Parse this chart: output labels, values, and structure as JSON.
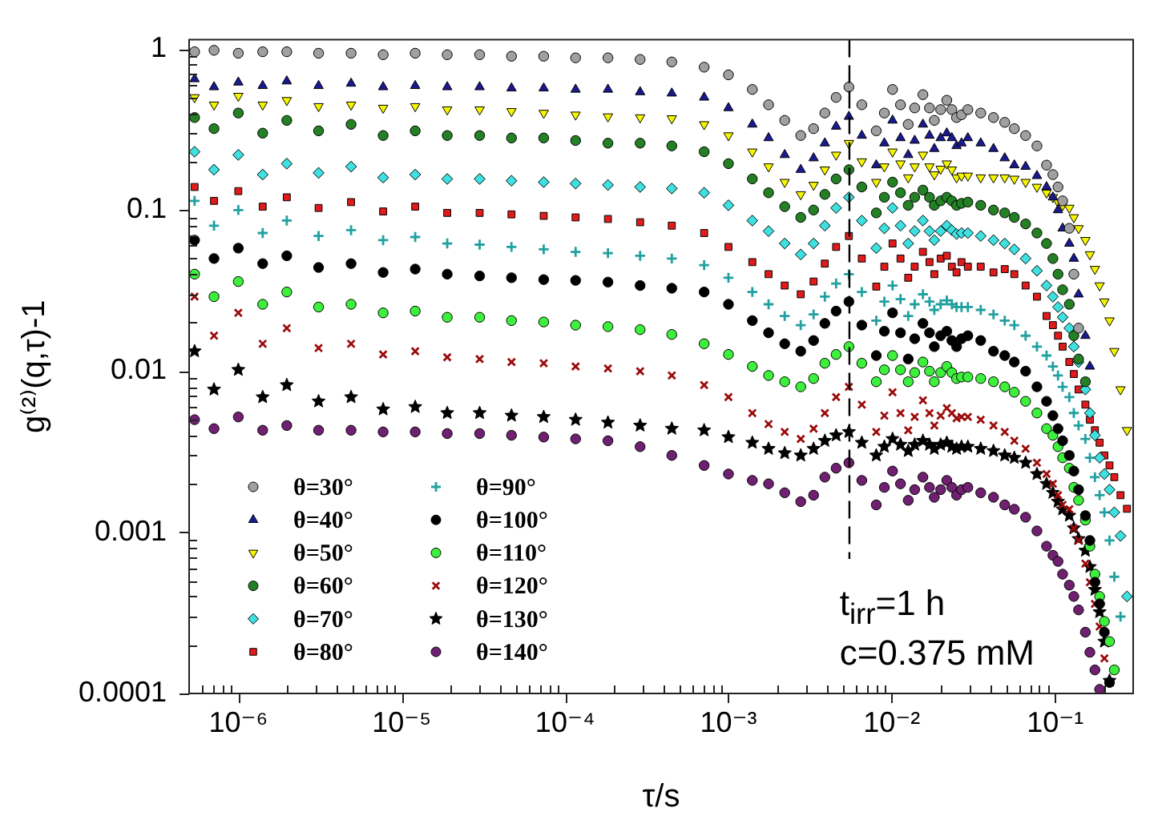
{
  "chart_data": {
    "type": "scatter",
    "xlabel": "τ/s",
    "ylabel": "g⁽²⁾(q,τ)-1",
    "log": "xy",
    "grid": false,
    "legend": "bottom left",
    "xlim": [
      5e-07,
      0.3
    ],
    "xticks": [
      {
        "value": 6e-07,
        "label": null
      },
      {
        "value": 7e-07,
        "label": null
      },
      {
        "value": 8e-07,
        "label": null
      },
      {
        "value": 9e-07,
        "label": null
      },
      {
        "value": 1e-06,
        "label": "10⁻⁶"
      },
      {
        "value": 2e-06,
        "label": null
      },
      {
        "value": 3e-06,
        "label": null
      },
      {
        "value": 4e-06,
        "label": null
      },
      {
        "value": 5e-06,
        "label": null
      },
      {
        "value": 6e-06,
        "label": null
      },
      {
        "value": 7e-06,
        "label": null
      },
      {
        "value": 8e-06,
        "label": null
      },
      {
        "value": 9e-06,
        "label": null
      },
      {
        "value": 1e-05,
        "label": "10⁻⁵"
      },
      {
        "value": 2e-05,
        "label": null
      },
      {
        "value": 3e-05,
        "label": null
      },
      {
        "value": 4e-05,
        "label": null
      },
      {
        "value": 5e-05,
        "label": null
      },
      {
        "value": 6e-05,
        "label": null
      },
      {
        "value": 7e-05,
        "label": null
      },
      {
        "value": 8e-05,
        "label": null
      },
      {
        "value": 9e-05,
        "label": null
      },
      {
        "value": 0.0001,
        "label": "10⁻⁴"
      },
      {
        "value": 0.0002,
        "label": null
      },
      {
        "value": 0.0003,
        "label": null
      },
      {
        "value": 0.0004,
        "label": null
      },
      {
        "value": 0.0005,
        "label": null
      },
      {
        "value": 0.0006,
        "label": null
      },
      {
        "value": 0.0007,
        "label": null
      },
      {
        "value": 0.0008,
        "label": null
      },
      {
        "value": 0.0009,
        "label": null
      },
      {
        "value": 0.001,
        "label": "10⁻³"
      },
      {
        "value": 0.002,
        "label": null
      },
      {
        "value": 0.003,
        "label": null
      },
      {
        "value": 0.004,
        "label": null
      },
      {
        "value": 0.005,
        "label": null
      },
      {
        "value": 0.006,
        "label": null
      },
      {
        "value": 0.007,
        "label": null
      },
      {
        "value": 0.008,
        "label": null
      },
      {
        "value": 0.009,
        "label": null
      },
      {
        "value": 0.01,
        "label": "10⁻²"
      },
      {
        "value": 0.02,
        "label": null
      },
      {
        "value": 0.03,
        "label": null
      },
      {
        "value": 0.04,
        "label": null
      },
      {
        "value": 0.05,
        "label": null
      },
      {
        "value": 0.06,
        "label": null
      },
      {
        "value": 0.07,
        "label": null
      },
      {
        "value": 0.08,
        "label": null
      },
      {
        "value": 0.09,
        "label": null
      },
      {
        "value": 0.1,
        "label": "10⁻¹"
      },
      {
        "value": 0.2,
        "label": null
      }
    ],
    "ylim": [
      0.0001,
      1.14
    ],
    "yticks": [
      0.0001,
      {
        "value": 0.0002,
        "label": null
      },
      {
        "value": 0.0003,
        "label": null
      },
      {
        "value": 0.0004,
        "label": null
      },
      {
        "value": 0.0005,
        "label": null
      },
      {
        "value": 0.0006,
        "label": null
      },
      {
        "value": 0.0007,
        "label": null
      },
      {
        "value": 0.0008,
        "label": null
      },
      {
        "value": 0.0009,
        "label": null
      },
      0.001,
      {
        "value": 0.002,
        "label": null
      },
      {
        "value": 0.003,
        "label": null
      },
      {
        "value": 0.004,
        "label": null
      },
      {
        "value": 0.005,
        "label": null
      },
      {
        "value": 0.006,
        "label": null
      },
      {
        "value": 0.007,
        "label": null
      },
      {
        "value": 0.008,
        "label": null
      },
      {
        "value": 0.009,
        "label": null
      },
      0.01,
      {
        "value": 0.02,
        "label": null
      },
      {
        "value": 0.03,
        "label": null
      },
      {
        "value": 0.04,
        "label": null
      },
      {
        "value": 0.05,
        "label": null
      },
      {
        "value": 0.06,
        "label": null
      },
      {
        "value": 0.07,
        "label": null
      },
      {
        "value": 0.08,
        "label": null
      },
      {
        "value": 0.09,
        "label": null
      },
      0.1,
      {
        "value": 0.2,
        "label": null
      },
      {
        "value": 0.3,
        "label": null
      },
      {
        "value": 0.4,
        "label": null
      },
      {
        "value": 0.5,
        "label": null
      },
      {
        "value": 0.6,
        "label": null
      },
      {
        "value": 0.7,
        "label": null
      },
      {
        "value": 0.8,
        "label": null
      },
      {
        "value": 0.9,
        "label": null
      },
      1
    ],
    "x": [
      5.4e-07,
      7.1e-07,
      1e-06,
      1.41e-06,
      1.98e-06,
      3.1e-06,
      4.9e-06,
      7.7e-06,
      1.21e-05,
      1.9e-05,
      3e-05,
      4.7e-05,
      7.4e-05,
      0.000116,
      0.000183,
      0.000288,
      0.00045,
      0.00071,
      0.001,
      0.0014,
      0.00176,
      0.00221,
      0.00277,
      0.00332,
      0.00389,
      0.00456,
      0.00546,
      0.00655,
      0.00803,
      0.009,
      0.0101,
      0.0113,
      0.0126,
      0.0138,
      0.0155,
      0.017,
      0.0182,
      0.0199,
      0.0217,
      0.0233,
      0.0249,
      0.0267,
      0.0292,
      0.035,
      0.0419,
      0.0491,
      0.0562,
      0.0659,
      0.0773,
      0.0885,
      0.0968,
      0.104,
      0.111,
      0.122,
      0.13,
      0.139,
      0.153,
      0.163,
      0.175,
      0.187,
      0.2,
      0.215,
      0.23,
      0.251,
      0.275
    ],
    "series": [
      {
        "name": "θ=30°",
        "color": "#a0a0a0",
        "marker": "circle",
        "values": [
          0.96,
          0.98,
          0.94,
          0.96,
          0.96,
          0.94,
          0.94,
          0.92,
          0.94,
          0.92,
          0.92,
          0.9,
          0.9,
          0.88,
          0.88,
          0.86,
          0.83,
          0.77,
          0.69,
          0.56,
          0.45,
          0.36,
          0.29,
          0.32,
          0.4,
          0.5,
          0.58,
          0.45,
          0.31,
          0.4,
          0.56,
          0.45,
          0.34,
          0.43,
          0.52,
          0.43,
          0.36,
          0.42,
          0.48,
          0.42,
          0.375,
          0.39,
          0.42,
          0.4,
          0.375,
          0.35,
          0.32,
          0.29,
          0.25,
          0.19,
          0.166,
          0.139,
          0.114,
          0.077,
          0.04,
          0.0185,
          null,
          null,
          null,
          null,
          null,
          null,
          null,
          null,
          null
        ]
      },
      {
        "name": "θ=40°",
        "color": "#1a1a90",
        "marker": "triangle",
        "values": [
          0.65,
          0.58,
          0.62,
          0.59,
          0.63,
          0.59,
          0.61,
          0.58,
          0.59,
          0.58,
          0.58,
          0.57,
          0.57,
          0.56,
          0.56,
          0.54,
          0.53,
          0.5,
          0.43,
          0.34,
          0.28,
          0.22,
          0.178,
          0.21,
          0.26,
          0.33,
          0.38,
          0.29,
          0.19,
          0.26,
          0.36,
          0.28,
          0.22,
          0.27,
          0.34,
          0.29,
          0.24,
          0.28,
          0.3,
          0.28,
          0.25,
          0.26,
          0.28,
          0.26,
          0.24,
          0.21,
          0.19,
          0.186,
          0.163,
          0.139,
          0.12,
          0.1,
          0.077,
          0.062,
          0.05,
          0.03,
          0.0166,
          0.0107,
          null,
          null,
          null,
          null,
          null,
          null,
          null
        ]
      },
      {
        "name": "θ=50°",
        "color": "#f5f500",
        "marker": "triangle-down",
        "values": [
          0.5,
          0.45,
          0.51,
          0.45,
          0.48,
          0.44,
          0.45,
          0.43,
          0.44,
          0.42,
          0.42,
          0.41,
          0.4,
          0.39,
          0.38,
          0.375,
          0.37,
          0.34,
          0.29,
          0.23,
          0.186,
          0.149,
          0.125,
          0.143,
          0.178,
          0.22,
          0.26,
          0.2,
          0.149,
          0.186,
          0.23,
          0.194,
          0.159,
          0.186,
          0.22,
          0.186,
          0.166,
          0.18,
          0.194,
          0.178,
          0.159,
          0.163,
          0.163,
          0.159,
          0.159,
          0.159,
          0.156,
          0.149,
          0.139,
          0.128,
          0.12,
          0.112,
          0.107,
          0.103,
          0.09,
          0.077,
          0.065,
          0.053,
          0.043,
          0.034,
          0.027,
          0.0206,
          0.0133,
          0.0077,
          0.0043
        ]
      },
      {
        "name": "θ=60°",
        "color": "#248024",
        "marker": "circle",
        "values": [
          0.375,
          0.32,
          0.4,
          0.3,
          0.36,
          0.31,
          0.34,
          0.29,
          0.31,
          0.29,
          0.29,
          0.28,
          0.28,
          0.27,
          0.26,
          0.26,
          0.25,
          0.23,
          0.194,
          0.156,
          0.128,
          0.105,
          0.09,
          0.1,
          0.125,
          0.156,
          0.178,
          0.139,
          0.096,
          0.12,
          0.149,
          0.128,
          0.107,
          0.12,
          0.133,
          0.12,
          0.107,
          0.114,
          0.12,
          0.114,
          0.107,
          0.11,
          0.112,
          0.107,
          0.1,
          0.096,
          0.09,
          0.082,
          0.072,
          0.062,
          0.05,
          0.04,
          0.032,
          0.026,
          0.0166,
          0.0119,
          0.0086,
          null,
          null,
          null,
          null,
          null,
          null,
          null,
          null
        ]
      },
      {
        "name": "θ=70°",
        "color": "#3ee0e0",
        "marker": "diamond",
        "values": [
          0.23,
          0.178,
          0.22,
          0.166,
          0.194,
          0.17,
          0.186,
          0.159,
          0.166,
          0.156,
          0.156,
          0.152,
          0.149,
          0.146,
          0.143,
          0.139,
          0.136,
          0.128,
          0.107,
          0.086,
          0.074,
          0.062,
          0.053,
          0.062,
          0.08,
          0.103,
          0.12,
          0.086,
          0.058,
          0.077,
          0.103,
          0.08,
          0.062,
          0.074,
          0.086,
          0.074,
          0.065,
          0.074,
          0.08,
          0.075,
          0.071,
          0.072,
          0.072,
          0.069,
          0.065,
          0.062,
          0.057,
          0.05,
          0.042,
          0.034,
          0.029,
          0.025,
          0.0216,
          0.0185,
          0.0142,
          0.0114,
          0.0077,
          0.0055,
          0.004,
          0.0029,
          0.0023,
          0.00184,
          0.00133,
          0.00095,
          0.0004
        ]
      },
      {
        "name": "θ=80°",
        "color": "#e01b1b",
        "marker": "square",
        "values": [
          0.139,
          0.114,
          0.131,
          0.105,
          0.12,
          0.103,
          0.112,
          0.098,
          0.105,
          0.096,
          0.096,
          0.094,
          0.092,
          0.09,
          0.088,
          0.084,
          0.08,
          0.072,
          0.059,
          0.0475,
          0.04,
          0.034,
          0.03,
          0.036,
          0.0465,
          0.059,
          0.069,
          0.05,
          0.0335,
          0.0445,
          0.062,
          0.05,
          0.038,
          0.0445,
          0.055,
          0.0475,
          0.04,
          0.05,
          0.052,
          0.0445,
          0.041,
          0.0475,
          0.0445,
          0.0445,
          0.041,
          0.043,
          0.04,
          0.034,
          0.029,
          0.022,
          0.0193,
          0.0166,
          0.0142,
          0.0114,
          0.0096,
          0.0077,
          0.0062,
          0.005,
          0.0043,
          0.0036,
          0.003,
          0.0026,
          0.0022,
          0.0017,
          0.0014
        ]
      },
      {
        "name": "θ=90°",
        "color": "#20a0a0",
        "marker": "plus",
        "values": [
          0.114,
          0.08,
          0.1,
          0.072,
          0.086,
          0.069,
          0.075,
          0.065,
          0.068,
          0.062,
          0.061,
          0.059,
          0.057,
          0.055,
          0.054,
          0.052,
          0.05,
          0.0455,
          0.038,
          0.031,
          0.026,
          0.022,
          0.0193,
          0.0225,
          0.029,
          0.035,
          0.04,
          0.031,
          0.0206,
          0.027,
          0.034,
          0.028,
          0.022,
          0.026,
          0.03,
          0.027,
          0.024,
          0.026,
          0.0275,
          0.026,
          0.025,
          0.025,
          0.025,
          0.024,
          0.0225,
          0.0206,
          0.0193,
          0.0166,
          0.0142,
          0.0125,
          0.0107,
          0.0094,
          0.008,
          0.0069,
          0.0055,
          0.0046,
          0.0038,
          0.0029,
          0.0022,
          0.0017,
          0.00133,
          0.00089,
          0.00053,
          0.0003,
          null
        ]
      },
      {
        "name": "θ=100°",
        "color": "#000000",
        "marker": "circle",
        "values": [
          0.065,
          0.05,
          0.058,
          0.0465,
          0.052,
          0.044,
          0.0465,
          0.041,
          0.043,
          0.04,
          0.039,
          0.038,
          0.037,
          0.0366,
          0.0357,
          0.034,
          0.0327,
          0.031,
          0.026,
          0.0206,
          0.0173,
          0.0148,
          0.0133,
          0.0155,
          0.0198,
          0.0236,
          0.027,
          0.0193,
          0.0125,
          0.0177,
          0.023,
          0.0173,
          0.0119,
          0.0159,
          0.0198,
          0.0173,
          0.0142,
          0.0166,
          0.0177,
          0.0155,
          0.0142,
          0.0159,
          0.0166,
          0.0155,
          0.0133,
          0.0125,
          0.0114,
          0.01,
          0.008,
          0.0065,
          0.0053,
          0.0044,
          0.0037,
          0.003,
          0.0024,
          0.00184,
          0.00127,
          0.00089,
          0.00049,
          0.00036,
          0.00024,
          0.000117,
          null,
          null,
          null
        ]
      },
      {
        "name": "θ=110°",
        "color": "#3cf03c",
        "marker": "circle",
        "values": [
          0.04,
          0.029,
          0.036,
          0.026,
          0.031,
          0.025,
          0.026,
          0.023,
          0.0236,
          0.0216,
          0.0216,
          0.0206,
          0.0202,
          0.0193,
          0.0189,
          0.0181,
          0.0169,
          0.0148,
          0.0127,
          0.0107,
          0.0094,
          0.0086,
          0.008,
          0.009,
          0.0112,
          0.0127,
          0.0142,
          0.0112,
          0.0086,
          0.0102,
          0.0125,
          0.0102,
          0.0086,
          0.0098,
          0.0114,
          0.01,
          0.0086,
          0.0098,
          0.0107,
          0.0098,
          0.009,
          0.0092,
          0.0092,
          0.009,
          0.0086,
          0.008,
          0.0074,
          0.0065,
          0.0055,
          0.0044,
          0.004,
          0.0034,
          0.0029,
          0.0025,
          0.0019,
          0.00158,
          0.00119,
          0.00082,
          0.00055,
          0.0004,
          0.00028,
          0.00021,
          0.00014,
          null,
          null
        ]
      },
      {
        "name": "θ=120°",
        "color": "#9c0a0a",
        "marker": "cross",
        "values": [
          0.029,
          0.0166,
          0.023,
          0.0148,
          0.0185,
          0.0139,
          0.0148,
          0.0127,
          0.0133,
          0.0122,
          0.0119,
          0.0114,
          0.0112,
          0.0107,
          0.0104,
          0.01,
          0.0094,
          0.0082,
          0.0069,
          0.0055,
          0.0047,
          0.0042,
          0.0038,
          0.0044,
          0.0055,
          0.0069,
          0.008,
          0.0062,
          0.0042,
          0.0053,
          0.0074,
          0.0055,
          0.0043,
          0.0052,
          0.0066,
          0.0055,
          0.0046,
          0.0053,
          0.0059,
          0.0055,
          0.0051,
          0.0052,
          0.0052,
          0.005,
          0.0046,
          0.0042,
          0.0037,
          0.0033,
          0.0027,
          0.0023,
          0.002,
          0.0017,
          0.00148,
          0.00139,
          0.00106,
          0.00089,
          0.00064,
          0.00049,
          0.00036,
          0.00026,
          0.000165,
          null,
          null,
          null,
          null
        ]
      },
      {
        "name": "θ=130°",
        "color": "#000000",
        "marker": "star",
        "values": [
          0.0133,
          0.0077,
          0.0102,
          0.0069,
          0.0082,
          0.0065,
          0.0069,
          0.0058,
          0.006,
          0.0055,
          0.0055,
          0.0053,
          0.0052,
          0.005,
          0.0048,
          0.0046,
          0.0044,
          0.0043,
          0.0039,
          0.0036,
          0.0033,
          0.0031,
          0.003,
          0.0033,
          0.0037,
          0.004,
          0.0042,
          0.0036,
          0.003,
          0.0034,
          0.0038,
          0.0035,
          0.0032,
          0.0035,
          0.0037,
          0.0035,
          0.0033,
          0.0035,
          0.0036,
          0.0034,
          0.0033,
          0.0034,
          0.0034,
          0.0033,
          0.0032,
          0.003,
          0.0029,
          0.0027,
          0.0023,
          0.002,
          0.00176,
          0.00155,
          0.00139,
          0.00127,
          0.00106,
          0.00091,
          0.00077,
          0.00061,
          0.00044,
          0.00032,
          0.00021,
          0.00012,
          null,
          null,
          null
        ]
      },
      {
        "name": "θ=140°",
        "color": "#702070",
        "marker": "circle",
        "values": [
          0.005,
          0.0044,
          0.0052,
          0.0043,
          0.0046,
          0.0043,
          0.0043,
          0.0042,
          0.0042,
          0.0041,
          0.0041,
          0.004,
          0.0039,
          0.0038,
          0.0037,
          0.0034,
          0.003,
          0.0026,
          0.0023,
          0.0021,
          0.002,
          0.00176,
          0.00155,
          0.0017,
          0.0022,
          0.0025,
          0.0027,
          0.0021,
          0.00148,
          0.0019,
          0.0024,
          0.002,
          0.00158,
          0.00184,
          0.0022,
          0.0019,
          0.00165,
          0.00184,
          0.0021,
          0.0019,
          0.0017,
          0.00184,
          0.0019,
          0.00176,
          0.00165,
          0.00148,
          0.00139,
          0.00124,
          0.00102,
          0.00082,
          0.00072,
          0.00066,
          0.00055,
          0.00047,
          0.0004,
          0.00033,
          0.00024,
          0.00018,
          0.00014,
          0.000106,
          null,
          null,
          null,
          null,
          null
        ]
      }
    ],
    "ref_lines": [
      {
        "axis": "x",
        "value": 0.0055,
        "color": "#000000",
        "line_style": "dashed"
      }
    ],
    "annotations": [
      "t$_{irr}$=1 h",
      "c=0.375 mM"
    ]
  }
}
